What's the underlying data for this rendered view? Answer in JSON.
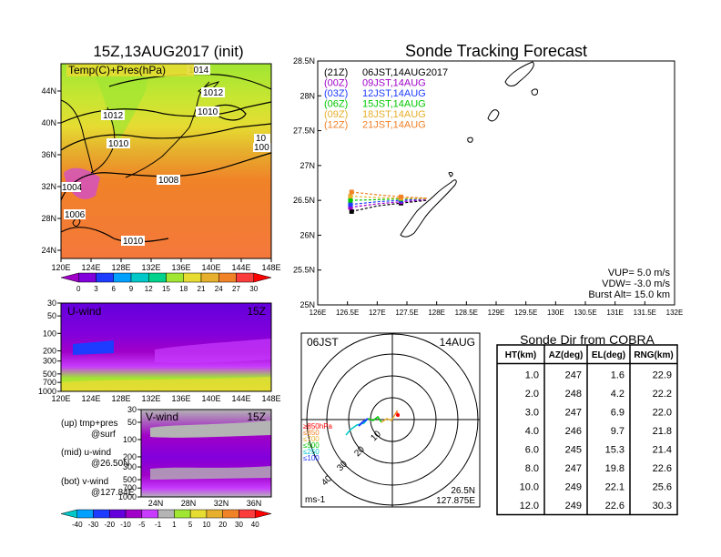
{
  "map_panel": {
    "title": "15Z,13AUG2017 (init)",
    "label": "Temp(C)+Pres(hPa)",
    "lon_ticks": [
      "120E",
      "124E",
      "128E",
      "132E",
      "136E",
      "140E",
      "144E",
      "148E"
    ],
    "lat_ticks": [
      "44N",
      "40N",
      "36N",
      "32N",
      "28N",
      "24N"
    ],
    "isobar_labels": [
      "1014",
      "1012",
      "1012",
      "1010",
      "1010",
      "1010",
      "1008",
      "1004",
      "1006",
      "1010",
      "10",
      "100"
    ],
    "colorbar_ticks": [
      "0",
      "3",
      "6",
      "9",
      "12",
      "15",
      "18",
      "21",
      "24",
      "27",
      "30"
    ],
    "colorbar_colors": [
      "#a000c8",
      "#8200dc",
      "#1e3cff",
      "#00a0ff",
      "#00c8c8",
      "#00d28c",
      "#a0e632",
      "#e6dc32",
      "#e6af2d",
      "#f08228",
      "#fa3c3c",
      "#ff0000"
    ]
  },
  "uwind_panel": {
    "label": "U-wind",
    "time": "15Z",
    "y_ticks": [
      "30",
      "50",
      "100",
      "200",
      "300",
      "500",
      "700",
      "1000"
    ],
    "x_ticks": [
      "120E",
      "124E",
      "128E",
      "132E",
      "136E",
      "140E",
      "144E",
      "148E"
    ]
  },
  "vwind_panel": {
    "label": "V-wind",
    "time": "15Z",
    "y_ticks": [
      "30",
      "50",
      "100",
      "200",
      "300",
      "500",
      "700",
      "1000"
    ],
    "x_ticks": [
      "24N",
      "28N",
      "32N",
      "36N"
    ]
  },
  "wind_colorbar": {
    "ticks": [
      "-40",
      "-30",
      "-20",
      "-10",
      "-5",
      "-1",
      "1",
      "5",
      "10",
      "20",
      "30",
      "40"
    ],
    "colors": [
      "#00c8c8",
      "#00a0ff",
      "#1e3cff",
      "#6400dc",
      "#a000c8",
      "#c83cff",
      "#b4b4b4",
      "#a0e632",
      "#e6dc32",
      "#e6af2d",
      "#f08228",
      "#fa3c3c",
      "#ff0000"
    ]
  },
  "legend_notes": {
    "up": "(up) tmp+pres",
    "up2": "@surf",
    "mid": "(mid) u-wind",
    "mid2": "@26.50N",
    "bot": "(bot) v-wind",
    "bot2": "@127.84E"
  },
  "track_panel": {
    "title": "Sonde Tracking Forecast",
    "lat_ticks": [
      "28.5N",
      "28N",
      "27.5N",
      "27N",
      "26.5N",
      "26N",
      "25.5N",
      "25N"
    ],
    "lon_ticks": [
      "126E",
      "126.5E",
      "127E",
      "127.5E",
      "128E",
      "128.5E",
      "129E",
      "129.5E",
      "130E",
      "130.5E",
      "131E",
      "131.5E",
      "132E"
    ],
    "launches": [
      {
        "code": "(21Z)",
        "time": "06JST,14AUG2017",
        "color": "#000000"
      },
      {
        "code": "(00Z)",
        "time": "09JST,14AUG",
        "color": "#a000c8"
      },
      {
        "code": "(03Z)",
        "time": "12JST,14AUG",
        "color": "#1e3cff"
      },
      {
        "code": "(06Z)",
        "time": "15JST,14AUG",
        "color": "#00c800"
      },
      {
        "code": "(09Z)",
        "time": "18JST,14AUG",
        "color": "#e6af2d"
      },
      {
        "code": "(12Z)",
        "time": "21JST,14AUG",
        "color": "#f08228"
      }
    ],
    "params": [
      "VUP=  5.0  m/s",
      "VDW= -3.0  m/s",
      "Burst Alt=  15.0  km"
    ]
  },
  "chart_data": {
    "type": "line",
    "title": "Sonde Tracking Forecast",
    "x_label": "",
    "y_label": "",
    "xlim": [
      126,
      132
    ],
    "ylim": [
      25,
      28.5
    ],
    "series": [
      {
        "name": "(21Z) 06JST,14AUG2017",
        "color": "#000000",
        "points": [
          [
            126.57,
            26.34
          ],
          [
            127.0,
            26.42
          ],
          [
            127.4,
            26.46
          ],
          [
            127.84,
            26.5
          ]
        ]
      },
      {
        "name": "(00Z) 09JST,14AUG",
        "color": "#a000c8",
        "points": [
          [
            126.55,
            26.4
          ],
          [
            127.0,
            26.45
          ],
          [
            127.4,
            26.48
          ],
          [
            127.84,
            26.51
          ]
        ]
      },
      {
        "name": "(03Z) 12JST,14AUG",
        "color": "#1e3cff",
        "points": [
          [
            126.55,
            26.44
          ],
          [
            127.0,
            26.48
          ],
          [
            127.4,
            26.5
          ],
          [
            127.84,
            26.52
          ]
        ]
      },
      {
        "name": "(06Z) 15JST,14AUG",
        "color": "#00c800",
        "points": [
          [
            126.55,
            26.5
          ],
          [
            127.0,
            26.51
          ],
          [
            127.4,
            26.52
          ],
          [
            127.84,
            26.53
          ]
        ]
      },
      {
        "name": "(09Z) 18JST,14AUG",
        "color": "#e6af2d",
        "points": [
          [
            126.55,
            26.56
          ],
          [
            127.0,
            26.54
          ],
          [
            127.4,
            26.53
          ],
          [
            127.84,
            26.52
          ]
        ]
      },
      {
        "name": "(12Z) 21JST,14AUG",
        "color": "#f08228",
        "points": [
          [
            126.57,
            26.62
          ],
          [
            127.0,
            26.58
          ],
          [
            127.4,
            26.55
          ],
          [
            127.84,
            26.53
          ]
        ]
      }
    ]
  },
  "polar_panel": {
    "left_label": "06JST",
    "right_label": "14AUG",
    "ring_labels": [
      "10",
      "20",
      "30",
      "40"
    ],
    "levels": [
      {
        "label": "≥850hPa",
        "color": "#ff0000"
      },
      {
        "label": "≤850",
        "color": "#f08228"
      },
      {
        "label": "≤700",
        "color": "#e6af2d"
      },
      {
        "label": "≤500",
        "color": "#00c800"
      },
      {
        "label": "≤250",
        "color": "#00c8c8"
      },
      {
        "label": "≤100",
        "color": "#1e3cff"
      }
    ],
    "unit": "ms-1",
    "loc_lat": "26.5N",
    "loc_lon": "127.875E"
  },
  "cobra_table": {
    "title": "Sonde Dir from COBRA",
    "headers": [
      "HT(km)",
      "AZ(deg)",
      "EL(deg)",
      "RNG(km)"
    ],
    "rows": [
      [
        "1.0",
        "247",
        "1.6",
        "22.9"
      ],
      [
        "2.0",
        "248",
        "4.2",
        "22.2"
      ],
      [
        "3.0",
        "247",
        "6.9",
        "22.0"
      ],
      [
        "4.0",
        "246",
        "9.7",
        "21.8"
      ],
      [
        "6.0",
        "245",
        "15.3",
        "21.4"
      ],
      [
        "8.0",
        "247",
        "19.8",
        "22.6"
      ],
      [
        "10.0",
        "249",
        "22.1",
        "25.6"
      ],
      [
        "12.0",
        "249",
        "22.6",
        "30.3"
      ]
    ]
  }
}
